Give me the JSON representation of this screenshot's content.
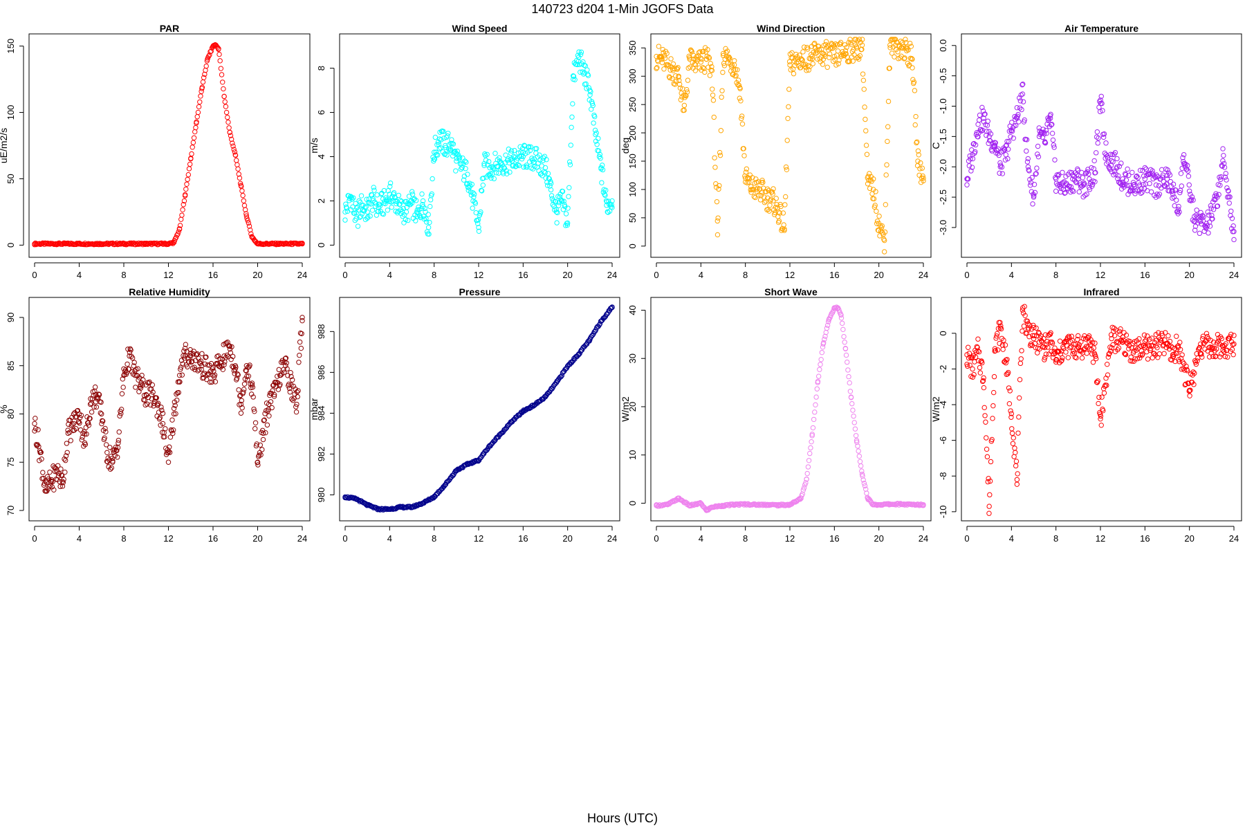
{
  "figure": {
    "title": "140723   d204   1-Min  JGOFS Data",
    "xlabel": "Hours (UTC)"
  },
  "chart_data": [
    {
      "type": "scatter",
      "title": "PAR",
      "xlabel": "",
      "ylabel": "uE/m2/s",
      "color": "#ff0000",
      "xlim": [
        0,
        24
      ],
      "ylim": [
        -5,
        155
      ],
      "xticks": [
        0,
        4,
        8,
        12,
        16,
        20,
        24
      ],
      "yticks": [
        0,
        50,
        100,
        150
      ],
      "x": [
        0,
        2,
        4,
        6,
        8,
        10,
        12,
        12.5,
        13,
        13.5,
        14,
        14.5,
        15,
        15.5,
        16,
        16.2,
        16.5,
        17,
        17.5,
        18,
        18.5,
        19,
        19.5,
        20,
        22,
        24
      ],
      "y": [
        1,
        1,
        1,
        1,
        1,
        1,
        1,
        2,
        12,
        38,
        65,
        92,
        118,
        140,
        150,
        151,
        148,
        112,
        85,
        68,
        45,
        22,
        6,
        1,
        1,
        1
      ]
    },
    {
      "type": "scatter",
      "title": "Wind Speed",
      "xlabel": "",
      "ylabel": "m/s",
      "color": "#00ffff",
      "xlim": [
        0,
        24
      ],
      "ylim": [
        -0.3,
        9.3
      ],
      "xticks": [
        0,
        4,
        8,
        12,
        16,
        20,
        24
      ],
      "yticks": [
        0,
        2,
        4,
        6,
        8
      ],
      "x": [
        0,
        0.5,
        1,
        1.5,
        2,
        2.5,
        3,
        3.5,
        4,
        4.5,
        5,
        5.5,
        6,
        6.5,
        7,
        7.5,
        8,
        8.5,
        9,
        9.5,
        10,
        10.5,
        11,
        11.5,
        12,
        12.5,
        13,
        14,
        15,
        16,
        17,
        18,
        18.5,
        19,
        19.5,
        20,
        20.5,
        21,
        21.5,
        22,
        22.5,
        23,
        23.5,
        24
      ],
      "y": [
        1.5,
        2.2,
        1.2,
        1.8,
        1.5,
        2.1,
        1.7,
        1.9,
        2.3,
        2.0,
        1.6,
        1.5,
        1.9,
        1.3,
        2.0,
        0.8,
        4.2,
        4.8,
        4.5,
        4.6,
        3.8,
        3.5,
        3.2,
        2.0,
        0.8,
        3.6,
        3.5,
        3.7,
        3.8,
        4.0,
        3.9,
        3.5,
        2.5,
        1.5,
        2.0,
        1.0,
        7.5,
        8.5,
        7.8,
        7.0,
        5.0,
        3.5,
        1.8,
        2.0
      ]
    },
    {
      "type": "scatter",
      "title": "Wind Direction",
      "xlabel": "",
      "ylabel": "deg",
      "color": "#ffa500",
      "xlim": [
        0,
        24
      ],
      "ylim": [
        -10,
        365
      ],
      "xticks": [
        0,
        4,
        8,
        12,
        16,
        20,
        24
      ],
      "yticks": [
        0,
        50,
        100,
        150,
        200,
        250,
        300,
        350
      ],
      "x": [
        0,
        0.5,
        1,
        1.5,
        2,
        2.5,
        3,
        3.5,
        4,
        4.5,
        5,
        5.5,
        6,
        6.5,
        7,
        7.5,
        8,
        8.5,
        9,
        9.5,
        10,
        10.5,
        11,
        11.5,
        12,
        13,
        14,
        15,
        16,
        17,
        18,
        18.5,
        19,
        19.5,
        20,
        20.5,
        21,
        21.5,
        22,
        22.5,
        23,
        23.5,
        24
      ],
      "y": [
        335,
        330,
        320,
        310,
        300,
        240,
        330,
        320,
        325,
        330,
        310,
        20,
        340,
        330,
        320,
        280,
        120,
        105,
        100,
        95,
        85,
        80,
        60,
        30,
        320,
        330,
        335,
        340,
        335,
        345,
        350,
        355,
        110,
        100,
        40,
        10,
        355,
        355,
        350,
        345,
        330,
        150,
        120
      ]
    },
    {
      "type": "scatter",
      "title": "Air Temperature",
      "xlabel": "",
      "ylabel": "C",
      "color": "#a020f0",
      "xlim": [
        0,
        24
      ],
      "ylim": [
        -3.4,
        0.1
      ],
      "xticks": [
        0,
        4,
        8,
        12,
        16,
        20,
        24
      ],
      "yticks": [
        0.0,
        -0.5,
        -1.0,
        -1.5,
        -2.0,
        -2.5,
        -3.0
      ],
      "x": [
        0,
        0.5,
        1,
        1.5,
        2,
        2.5,
        3,
        3.5,
        4,
        4.5,
        5,
        5.5,
        6,
        6.5,
        7,
        7.5,
        8,
        8.5,
        9,
        9.5,
        10,
        10.5,
        11,
        11.5,
        12,
        12.5,
        13,
        13.5,
        14,
        15,
        16,
        17,
        18,
        18.5,
        19,
        19.5,
        20,
        20.5,
        21,
        21.5,
        22,
        22.5,
        23,
        23.5,
        24
      ],
      "y": [
        -2.2,
        -1.8,
        -1.3,
        -1.2,
        -1.5,
        -1.6,
        -2.0,
        -1.8,
        -1.4,
        -1.2,
        -0.8,
        -2.0,
        -2.5,
        -1.5,
        -1.6,
        -1.2,
        -2.2,
        -2.3,
        -2.3,
        -2.2,
        -2.2,
        -2.3,
        -2.2,
        -2.1,
        -0.9,
        -1.8,
        -1.9,
        -2.0,
        -2.2,
        -2.3,
        -2.2,
        -2.3,
        -2.2,
        -2.4,
        -2.7,
        -1.8,
        -2.4,
        -2.9,
        -2.9,
        -3.0,
        -2.8,
        -2.5,
        -1.9,
        -2.4,
        -3.2
      ]
    },
    {
      "type": "scatter",
      "title": "Relative Humidity",
      "xlabel": "",
      "ylabel": "%",
      "color": "#8b0000",
      "xlim": [
        0,
        24
      ],
      "ylim": [
        69.5,
        91.5
      ],
      "xticks": [
        0,
        4,
        8,
        12,
        16,
        20,
        24
      ],
      "yticks": [
        70,
        75,
        80,
        85,
        90
      ],
      "x": [
        0,
        0.5,
        1,
        1.5,
        2,
        2.5,
        3,
        3.5,
        4,
        4.5,
        5,
        5.5,
        6,
        6.5,
        7,
        7.5,
        8,
        8.5,
        9,
        9.5,
        10,
        10.5,
        11,
        11.5,
        12,
        12.5,
        13,
        13.5,
        14,
        15,
        16,
        17,
        17.5,
        18,
        18.5,
        19,
        19.5,
        20,
        20.5,
        21,
        21.5,
        22,
        22.5,
        23,
        23.5,
        24
      ],
      "y": [
        79,
        76,
        72,
        73,
        74,
        73,
        78,
        79,
        80,
        77,
        81,
        82,
        80,
        76,
        75,
        77,
        84,
        86,
        84,
        83,
        82,
        82,
        81,
        79,
        75,
        80,
        84,
        86,
        86,
        85,
        84,
        86,
        87,
        85,
        81,
        85,
        83,
        75,
        78,
        81,
        82,
        84,
        85,
        83,
        81,
        90
      ]
    },
    {
      "type": "scatter",
      "title": "Pressure",
      "xlabel": "",
      "ylabel": "mbar",
      "color": "#00008b",
      "xlim": [
        0,
        24
      ],
      "ylim": [
        979.0,
        989.4
      ],
      "xticks": [
        0,
        4,
        8,
        12,
        16,
        20,
        24
      ],
      "yticks": [
        980,
        982,
        984,
        986,
        988
      ],
      "x": [
        0,
        1,
        2,
        3,
        4,
        5,
        6,
        7,
        8,
        9,
        10,
        11,
        12,
        13,
        14,
        15,
        16,
        17,
        18,
        19,
        20,
        21,
        22,
        23,
        24
      ],
      "y": [
        979.9,
        979.8,
        979.5,
        979.3,
        979.3,
        979.4,
        979.4,
        979.6,
        979.9,
        980.5,
        981.2,
        981.5,
        981.7,
        982.4,
        983.0,
        983.6,
        984.1,
        984.4,
        984.8,
        985.5,
        986.3,
        986.9,
        987.6,
        988.5,
        989.2
      ]
    },
    {
      "type": "scatter",
      "title": "Short Wave",
      "xlabel": "",
      "ylabel": "W/m2",
      "color": "#ee82ee",
      "xlim": [
        0,
        24
      ],
      "ylim": [
        -2.5,
        41.5
      ],
      "xticks": [
        0,
        4,
        8,
        12,
        16,
        20,
        24
      ],
      "yticks": [
        0,
        10,
        20,
        30,
        40
      ],
      "x": [
        0,
        1,
        2,
        3,
        4,
        4.5,
        5,
        6,
        7,
        8,
        9,
        10,
        11,
        12,
        13,
        13.5,
        14,
        14.5,
        15,
        15.5,
        16,
        16.3,
        16.6,
        17,
        17.5,
        18,
        18.5,
        19,
        19.5,
        20,
        21,
        22,
        23,
        24
      ],
      "y": [
        -0.5,
        -0.3,
        1.0,
        -0.5,
        0.0,
        -1.5,
        -0.8,
        -0.5,
        -0.3,
        -0.2,
        -0.3,
        -0.3,
        -0.4,
        -0.3,
        1.0,
        5.0,
        14.0,
        25.0,
        33.0,
        38.0,
        40.5,
        40.5,
        39.0,
        32.0,
        22.0,
        13.0,
        6.0,
        1.0,
        -0.3,
        -0.3,
        -0.2,
        -0.2,
        -0.3,
        -0.3
      ]
    },
    {
      "type": "scatter",
      "title": "Infrared",
      "xlabel": "",
      "ylabel": "W/m2",
      "color": "#ff0000",
      "xlim": [
        0,
        24
      ],
      "ylim": [
        -10.2,
        1.7
      ],
      "xticks": [
        0,
        4,
        8,
        12,
        16,
        20,
        24
      ],
      "yticks": [
        0,
        -2,
        -4,
        -6,
        -8,
        -10
      ],
      "x": [
        0,
        0.5,
        1,
        1.5,
        2,
        2.5,
        3,
        3.5,
        4,
        4.5,
        5,
        5.5,
        6,
        6.5,
        7,
        7.5,
        8,
        8.5,
        9,
        10,
        11,
        11.5,
        12,
        13,
        14,
        15,
        16,
        17,
        18,
        18.5,
        19,
        20,
        21,
        22,
        23,
        24
      ],
      "y": [
        -1.2,
        -2.0,
        -1.0,
        -2.5,
        -9.7,
        -1.0,
        0.3,
        -1.5,
        -4.5,
        -8.2,
        1.3,
        0.2,
        -0.3,
        -0.5,
        -0.8,
        -0.5,
        -1.5,
        -1.0,
        -0.7,
        -0.8,
        -0.5,
        -1.2,
        -4.8,
        -0.3,
        -0.5,
        -1.0,
        -0.8,
        -0.7,
        -0.6,
        -1.2,
        -0.7,
        -3.2,
        -0.6,
        -0.8,
        -0.7,
        -0.6
      ]
    }
  ]
}
